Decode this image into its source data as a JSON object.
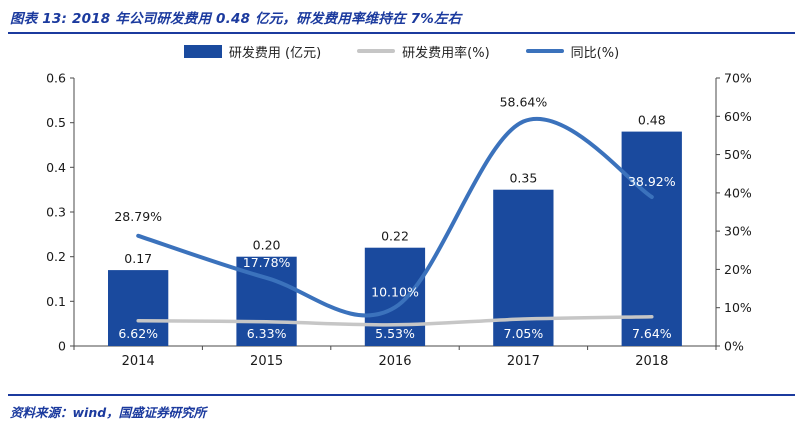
{
  "page": {
    "title": "图表 13: 2018 年公司研发费用 0.48 亿元，研发费用率维持在 7%左右",
    "source": "资料来源：wind，国盛证券研究所"
  },
  "colors": {
    "accent": "#1B3A9E",
    "bar": "#1A4A9E",
    "yoy_line": "#3B72BC",
    "rate_line": "#C6C6C6",
    "label_dark": "#1a1a1a",
    "label_light": "#ffffff",
    "axis": "#4a4a4a"
  },
  "chart_data": {
    "type": "bar",
    "subtype": "combo-bar-line",
    "categories": [
      "2014",
      "2015",
      "2016",
      "2017",
      "2018"
    ],
    "series": [
      {
        "name": "研发费用 (亿元)",
        "type": "bar",
        "axis": "left",
        "values": [
          0.17,
          0.2,
          0.22,
          0.35,
          0.48
        ],
        "labels": [
          "0.17",
          "0.20",
          "0.22",
          "0.35",
          "0.48"
        ]
      },
      {
        "name": "研发费用率(%)",
        "type": "line",
        "axis": "right",
        "values": [
          6.62,
          6.33,
          5.53,
          7.05,
          7.64
        ],
        "labels": [
          "6.62%",
          "6.33%",
          "5.53%",
          "7.05%",
          "7.64%"
        ]
      },
      {
        "name": "同比(%)",
        "type": "line",
        "axis": "right",
        "values": [
          28.79,
          17.78,
          10.1,
          58.64,
          38.92
        ],
        "labels": [
          "28.79%",
          "17.78%",
          "10.10%",
          "58.64%",
          "38.92%"
        ]
      }
    ],
    "left_axis": {
      "min": 0,
      "max": 0.6,
      "ticks": [
        "0",
        "0.1",
        "0.2",
        "0.3",
        "0.4",
        "0.5",
        "0.6"
      ]
    },
    "right_axis": {
      "min": 0,
      "max": 70,
      "ticks": [
        "0%",
        "10%",
        "20%",
        "30%",
        "40%",
        "50%",
        "60%",
        "70%"
      ]
    },
    "legend_position": "top",
    "grid": false
  }
}
